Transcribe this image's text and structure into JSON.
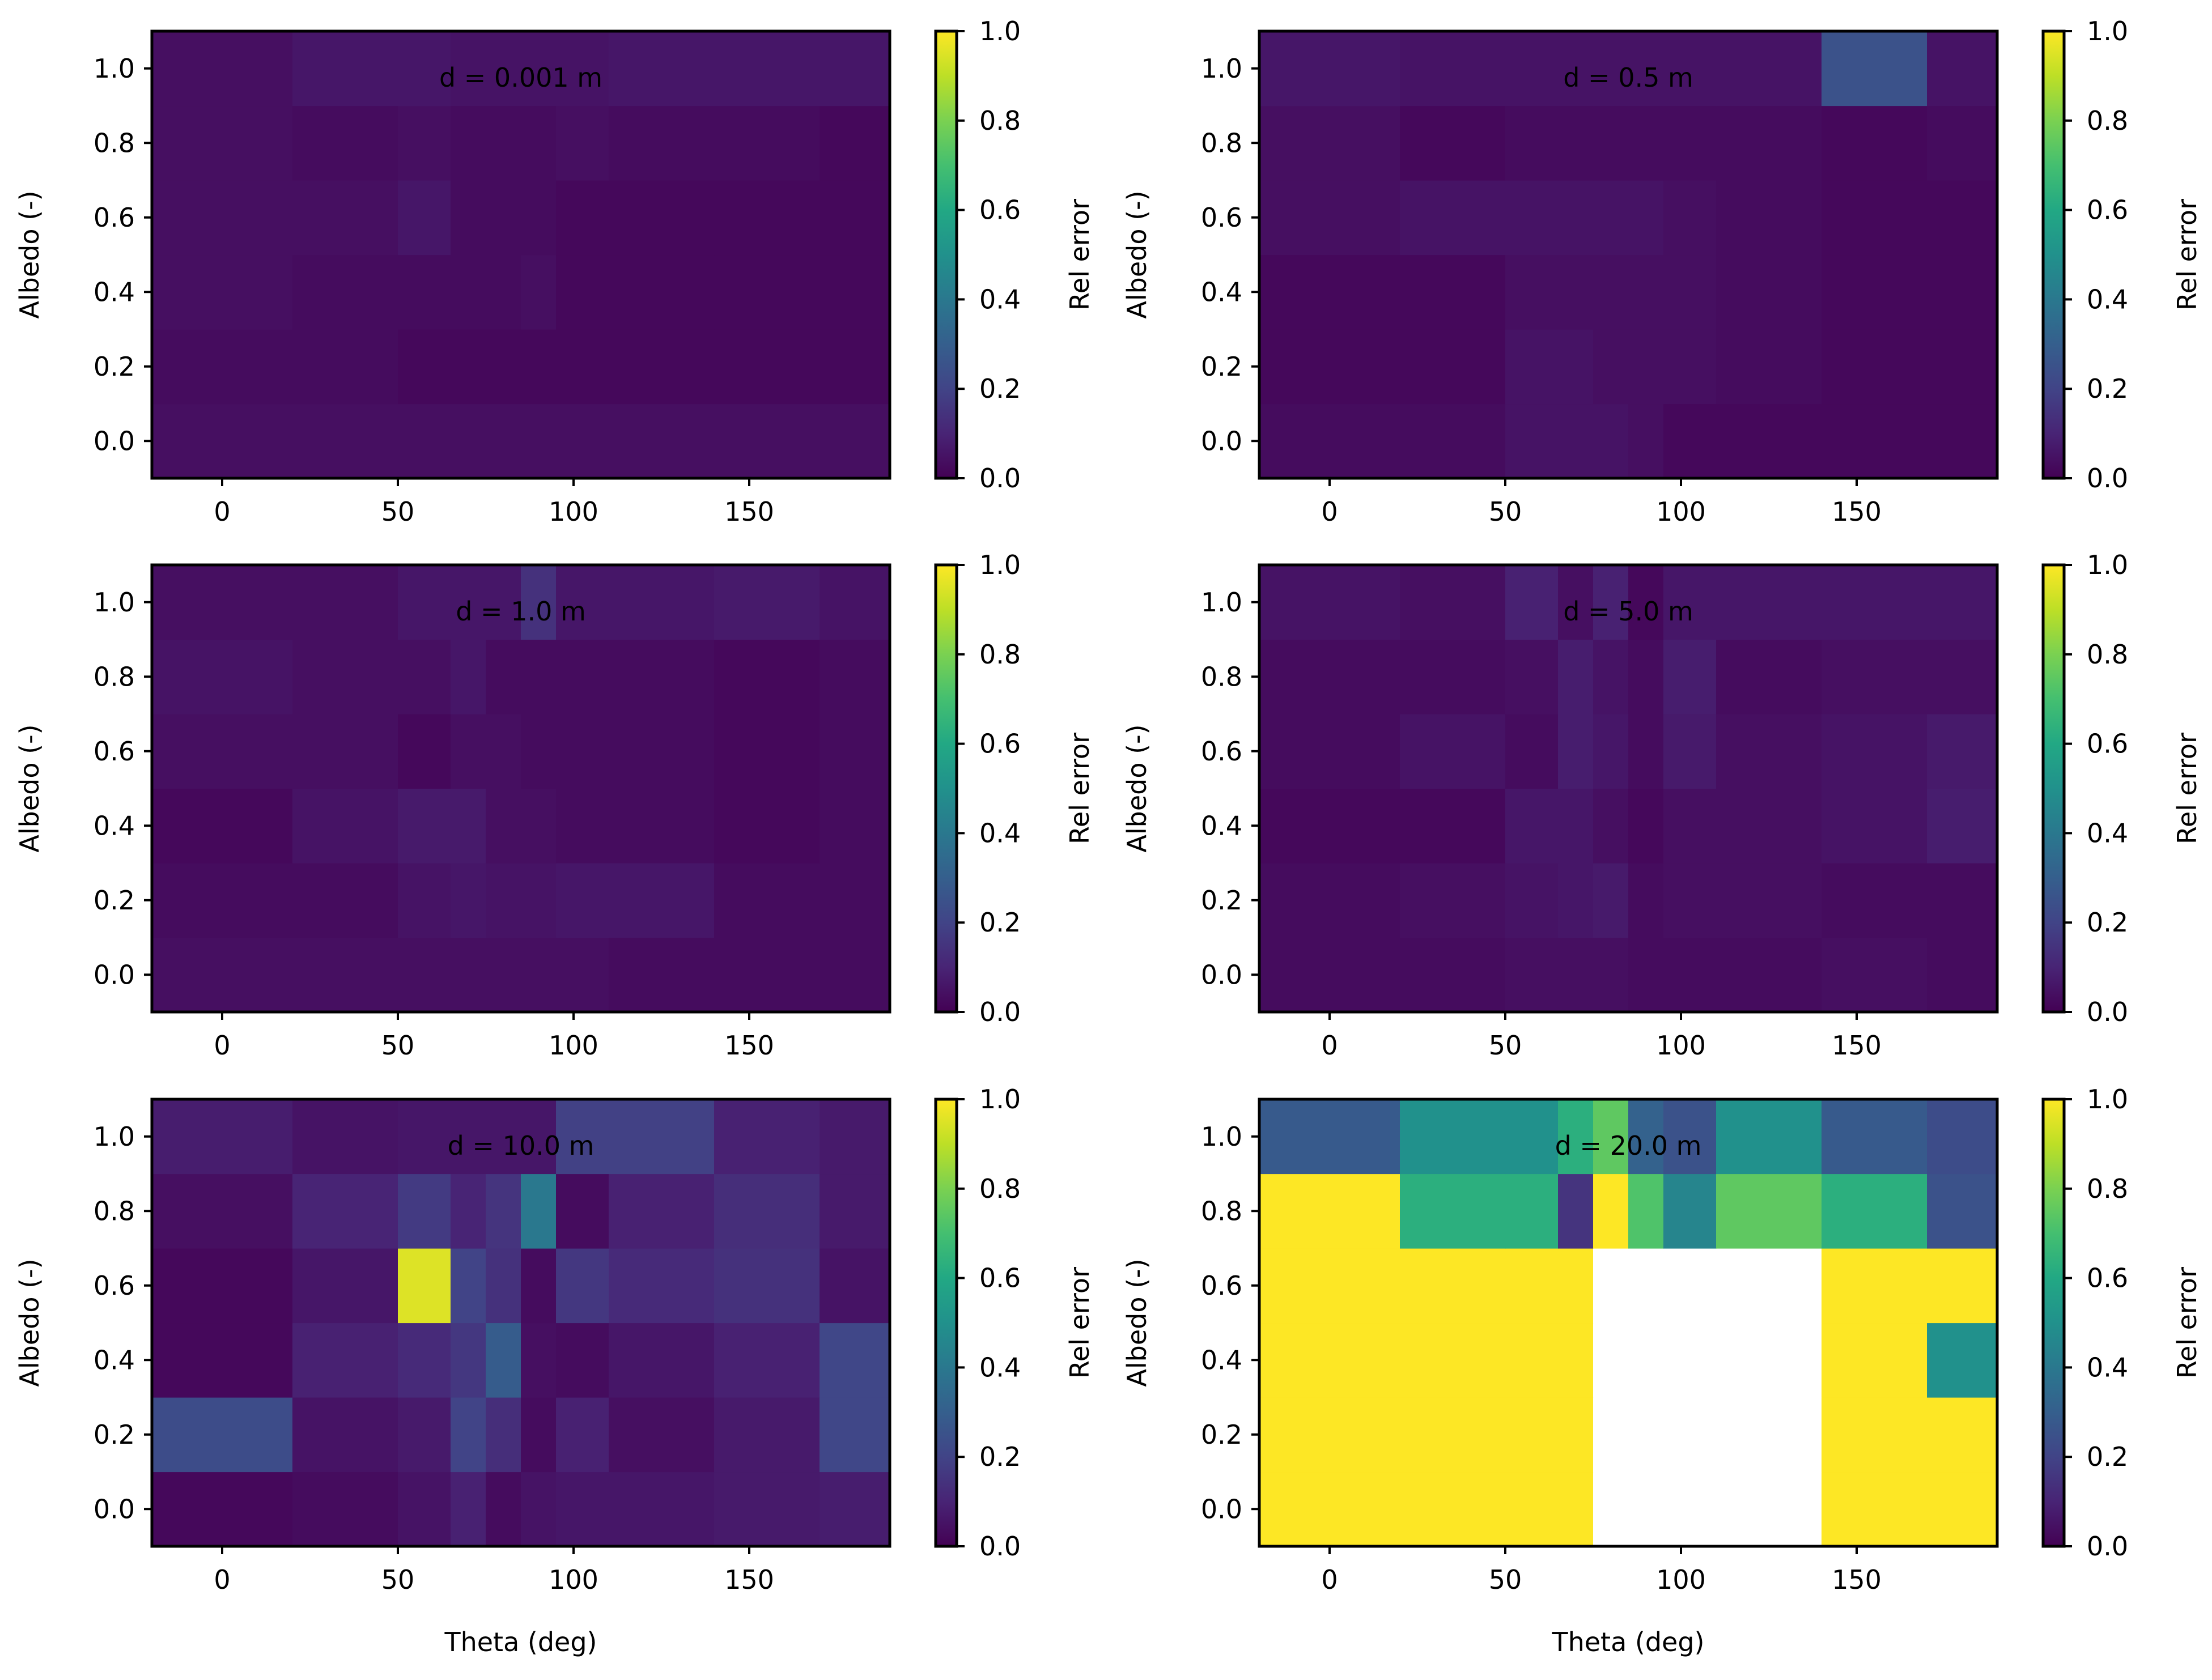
{
  "figure": {
    "rows": 3,
    "cols": 2
  },
  "colors": {
    "missing": "#ffffff",
    "frame": "#000000"
  },
  "chart_data": [
    {
      "type": "heatmap",
      "annotation": "d = 0.001 m",
      "xlabel": "",
      "ylabel": "Albedo (-)",
      "xlim": [
        -20,
        190
      ],
      "ylim": [
        -0.1,
        1.1
      ],
      "xticks": [
        0,
        50,
        100,
        150
      ],
      "xticklabels": [
        "0",
        "50",
        "100",
        "150"
      ],
      "yticks": [
        0.0,
        0.2,
        0.4,
        0.6,
        0.8,
        1.0
      ],
      "yticklabels": [
        "0.0",
        "0.2",
        "0.4",
        "0.6",
        "0.8",
        "1.0"
      ],
      "colorbar": {
        "label": "Rel error",
        "range": [
          0.0,
          1.0
        ],
        "cmap": "viridis",
        "ticklabels": [
          "0.0",
          "0.2",
          "0.4",
          "0.6",
          "0.8",
          "1.0"
        ]
      },
      "x_edges": [
        -20,
        20,
        50,
        65,
        75,
        85,
        95,
        110,
        140,
        170,
        190
      ],
      "y_edges": [
        -0.1,
        0.1,
        0.3,
        0.5,
        0.7,
        0.9,
        1.1
      ],
      "values": [
        [
          0.04,
          0.04,
          0.04,
          0.04,
          0.04,
          0.04,
          0.04,
          0.04,
          0.04,
          0.04
        ],
        [
          0.03,
          0.03,
          0.02,
          0.02,
          0.02,
          0.02,
          0.02,
          0.02,
          0.02,
          0.02
        ],
        [
          0.04,
          0.03,
          0.03,
          0.03,
          0.03,
          0.04,
          0.02,
          0.02,
          0.02,
          0.02
        ],
        [
          0.04,
          0.04,
          0.06,
          0.03,
          0.03,
          0.03,
          0.02,
          0.02,
          0.02,
          0.02
        ],
        [
          0.04,
          0.03,
          0.04,
          0.03,
          0.03,
          0.03,
          0.04,
          0.03,
          0.03,
          0.02
        ],
        [
          0.04,
          0.06,
          0.06,
          0.05,
          0.05,
          0.05,
          0.05,
          0.06,
          0.06,
          0.06
        ]
      ]
    },
    {
      "type": "heatmap",
      "annotation": "d = 0.5 m",
      "xlabel": "",
      "ylabel": "Albedo (-)",
      "xlim": [
        -20,
        190
      ],
      "ylim": [
        -0.1,
        1.1
      ],
      "xticks": [
        0,
        50,
        100,
        150
      ],
      "xticklabels": [
        "0",
        "50",
        "100",
        "150"
      ],
      "yticks": [
        0.0,
        0.2,
        0.4,
        0.6,
        0.8,
        1.0
      ],
      "yticklabels": [
        "0.0",
        "0.2",
        "0.4",
        "0.6",
        "0.8",
        "1.0"
      ],
      "colorbar": {
        "label": "Rel error",
        "range": [
          0.0,
          1.0
        ],
        "cmap": "viridis",
        "ticklabels": [
          "0.0",
          "0.2",
          "0.4",
          "0.6",
          "0.8",
          "1.0"
        ]
      },
      "x_edges": [
        -20,
        20,
        50,
        65,
        75,
        85,
        95,
        110,
        140,
        170,
        190
      ],
      "y_edges": [
        -0.1,
        0.1,
        0.3,
        0.5,
        0.7,
        0.9,
        1.1
      ],
      "values": [
        [
          0.03,
          0.03,
          0.05,
          0.05,
          0.05,
          0.04,
          0.02,
          0.02,
          0.02,
          0.02
        ],
        [
          0.02,
          0.02,
          0.05,
          0.05,
          0.04,
          0.04,
          0.04,
          0.03,
          0.02,
          0.02
        ],
        [
          0.02,
          0.02,
          0.04,
          0.04,
          0.04,
          0.04,
          0.04,
          0.03,
          0.02,
          0.02
        ],
        [
          0.04,
          0.05,
          0.05,
          0.05,
          0.05,
          0.05,
          0.04,
          0.03,
          0.02,
          0.02
        ],
        [
          0.04,
          0.02,
          0.03,
          0.03,
          0.03,
          0.03,
          0.03,
          0.03,
          0.02,
          0.03
        ],
        [
          0.06,
          0.05,
          0.05,
          0.05,
          0.05,
          0.05,
          0.05,
          0.05,
          0.25,
          0.05
        ]
      ]
    },
    {
      "type": "heatmap",
      "annotation": "d = 1.0 m",
      "xlabel": "",
      "ylabel": "Albedo (-)",
      "xlim": [
        -20,
        190
      ],
      "ylim": [
        -0.1,
        1.1
      ],
      "xticks": [
        0,
        50,
        100,
        150
      ],
      "xticklabels": [
        "0",
        "50",
        "100",
        "150"
      ],
      "yticks": [
        0.0,
        0.2,
        0.4,
        0.6,
        0.8,
        1.0
      ],
      "yticklabels": [
        "0.0",
        "0.2",
        "0.4",
        "0.6",
        "0.8",
        "1.0"
      ],
      "colorbar": {
        "label": "Rel error",
        "range": [
          0.0,
          1.0
        ],
        "cmap": "viridis",
        "ticklabels": [
          "0.0",
          "0.2",
          "0.4",
          "0.6",
          "0.8",
          "1.0"
        ]
      },
      "x_edges": [
        -20,
        20,
        50,
        65,
        75,
        85,
        95,
        110,
        140,
        170,
        190
      ],
      "y_edges": [
        -0.1,
        0.1,
        0.3,
        0.5,
        0.7,
        0.9,
        1.1
      ],
      "values": [
        [
          0.04,
          0.04,
          0.04,
          0.04,
          0.04,
          0.04,
          0.04,
          0.03,
          0.03,
          0.03
        ],
        [
          0.03,
          0.03,
          0.05,
          0.06,
          0.05,
          0.05,
          0.06,
          0.06,
          0.03,
          0.03
        ],
        [
          0.02,
          0.05,
          0.07,
          0.07,
          0.04,
          0.04,
          0.03,
          0.03,
          0.02,
          0.03
        ],
        [
          0.04,
          0.04,
          0.02,
          0.04,
          0.04,
          0.03,
          0.03,
          0.03,
          0.02,
          0.03
        ],
        [
          0.05,
          0.04,
          0.04,
          0.06,
          0.03,
          0.03,
          0.03,
          0.03,
          0.02,
          0.03
        ],
        [
          0.04,
          0.04,
          0.06,
          0.06,
          0.06,
          0.14,
          0.06,
          0.06,
          0.07,
          0.05
        ]
      ]
    },
    {
      "type": "heatmap",
      "annotation": "d = 5.0 m",
      "xlabel": "",
      "ylabel": "Albedo (-)",
      "xlim": [
        -20,
        190
      ],
      "ylim": [
        -0.1,
        1.1
      ],
      "xticks": [
        0,
        50,
        100,
        150
      ],
      "xticklabels": [
        "0",
        "50",
        "100",
        "150"
      ],
      "yticks": [
        0.0,
        0.2,
        0.4,
        0.6,
        0.8,
        1.0
      ],
      "yticklabels": [
        "0.0",
        "0.2",
        "0.4",
        "0.6",
        "0.8",
        "1.0"
      ],
      "colorbar": {
        "label": "Rel error",
        "range": [
          0.0,
          1.0
        ],
        "cmap": "viridis",
        "ticklabels": [
          "0.0",
          "0.2",
          "0.4",
          "0.6",
          "0.8",
          "1.0"
        ]
      },
      "x_edges": [
        -20,
        20,
        50,
        65,
        75,
        85,
        95,
        110,
        140,
        170,
        190
      ],
      "y_edges": [
        -0.1,
        0.1,
        0.3,
        0.5,
        0.7,
        0.9,
        1.1
      ],
      "values": [
        [
          0.03,
          0.03,
          0.04,
          0.04,
          0.04,
          0.03,
          0.03,
          0.03,
          0.04,
          0.03
        ],
        [
          0.03,
          0.04,
          0.05,
          0.06,
          0.07,
          0.03,
          0.04,
          0.04,
          0.03,
          0.03
        ],
        [
          0.02,
          0.02,
          0.06,
          0.06,
          0.04,
          0.02,
          0.04,
          0.04,
          0.05,
          0.08
        ],
        [
          0.03,
          0.05,
          0.03,
          0.08,
          0.06,
          0.03,
          0.07,
          0.04,
          0.05,
          0.07
        ],
        [
          0.03,
          0.03,
          0.04,
          0.08,
          0.05,
          0.03,
          0.08,
          0.03,
          0.04,
          0.04
        ],
        [
          0.05,
          0.04,
          0.09,
          0.04,
          0.09,
          0.02,
          0.06,
          0.06,
          0.06,
          0.06
        ]
      ]
    },
    {
      "type": "heatmap",
      "annotation": "d = 10.0 m",
      "xlabel": "Theta (deg)",
      "ylabel": "Albedo (-)",
      "xlim": [
        -20,
        190
      ],
      "ylim": [
        -0.1,
        1.1
      ],
      "xticks": [
        0,
        50,
        100,
        150
      ],
      "xticklabels": [
        "0",
        "50",
        "100",
        "150"
      ],
      "yticks": [
        0.0,
        0.2,
        0.4,
        0.6,
        0.8,
        1.0
      ],
      "yticklabels": [
        "0.0",
        "0.2",
        "0.4",
        "0.6",
        "0.8",
        "1.0"
      ],
      "colorbar": {
        "label": "Rel error",
        "range": [
          0.0,
          1.0
        ],
        "cmap": "viridis",
        "ticklabels": [
          "0.0",
          "0.2",
          "0.4",
          "0.6",
          "0.8",
          "1.0"
        ]
      },
      "x_edges": [
        -20,
        20,
        50,
        65,
        75,
        85,
        95,
        110,
        140,
        170,
        190
      ],
      "y_edges": [
        -0.1,
        0.1,
        0.3,
        0.5,
        0.7,
        0.9,
        1.1
      ],
      "values": [
        [
          0.02,
          0.03,
          0.05,
          0.09,
          0.03,
          0.05,
          0.06,
          0.06,
          0.07,
          0.08
        ],
        [
          0.23,
          0.05,
          0.07,
          0.2,
          0.13,
          0.03,
          0.09,
          0.04,
          0.07,
          0.21
        ],
        [
          0.02,
          0.09,
          0.12,
          0.16,
          0.29,
          0.04,
          0.03,
          0.06,
          0.09,
          0.21
        ],
        [
          0.02,
          0.06,
          0.95,
          0.2,
          0.14,
          0.03,
          0.16,
          0.12,
          0.14,
          0.05
        ],
        [
          0.04,
          0.1,
          0.17,
          0.1,
          0.15,
          0.4,
          0.03,
          0.09,
          0.13,
          0.07
        ],
        [
          0.08,
          0.05,
          0.06,
          0.06,
          0.06,
          0.06,
          0.19,
          0.19,
          0.09,
          0.07
        ]
      ]
    },
    {
      "type": "heatmap",
      "annotation": "d = 20.0 m",
      "xlabel": "Theta (deg)",
      "ylabel": "Albedo (-)",
      "xlim": [
        -20,
        190
      ],
      "ylim": [
        -0.1,
        1.1
      ],
      "xticks": [
        0,
        50,
        100,
        150
      ],
      "xticklabels": [
        "0",
        "50",
        "100",
        "150"
      ],
      "yticks": [
        0.0,
        0.2,
        0.4,
        0.6,
        0.8,
        1.0
      ],
      "yticklabels": [
        "0.0",
        "0.2",
        "0.4",
        "0.6",
        "0.8",
        "1.0"
      ],
      "colorbar": {
        "label": "Rel error",
        "range": [
          0.0,
          1.0
        ],
        "cmap": "viridis",
        "ticklabels": [
          "0.0",
          "0.2",
          "0.4",
          "0.6",
          "0.8",
          "1.0"
        ]
      },
      "x_edges": [
        -20,
        20,
        50,
        65,
        75,
        85,
        95,
        110,
        140,
        170,
        190
      ],
      "y_edges": [
        -0.1,
        0.1,
        0.3,
        0.5,
        0.7,
        0.9,
        1.1
      ],
      "values": [
        [
          1.0,
          1.0,
          1.0,
          1.0,
          null,
          null,
          null,
          null,
          1.0,
          1.0
        ],
        [
          1.0,
          1.0,
          1.0,
          1.0,
          null,
          null,
          null,
          null,
          1.0,
          1.0
        ],
        [
          1.0,
          1.0,
          1.0,
          1.0,
          null,
          null,
          null,
          null,
          1.0,
          0.5
        ],
        [
          1.0,
          1.0,
          1.0,
          1.0,
          null,
          null,
          null,
          null,
          1.0,
          1.0
        ],
        [
          1.0,
          0.63,
          0.63,
          0.15,
          1.0,
          0.72,
          0.45,
          0.75,
          0.63,
          0.25
        ],
        [
          0.28,
          0.5,
          0.5,
          0.63,
          0.75,
          0.31,
          0.25,
          0.5,
          0.28,
          0.23
        ]
      ]
    }
  ]
}
